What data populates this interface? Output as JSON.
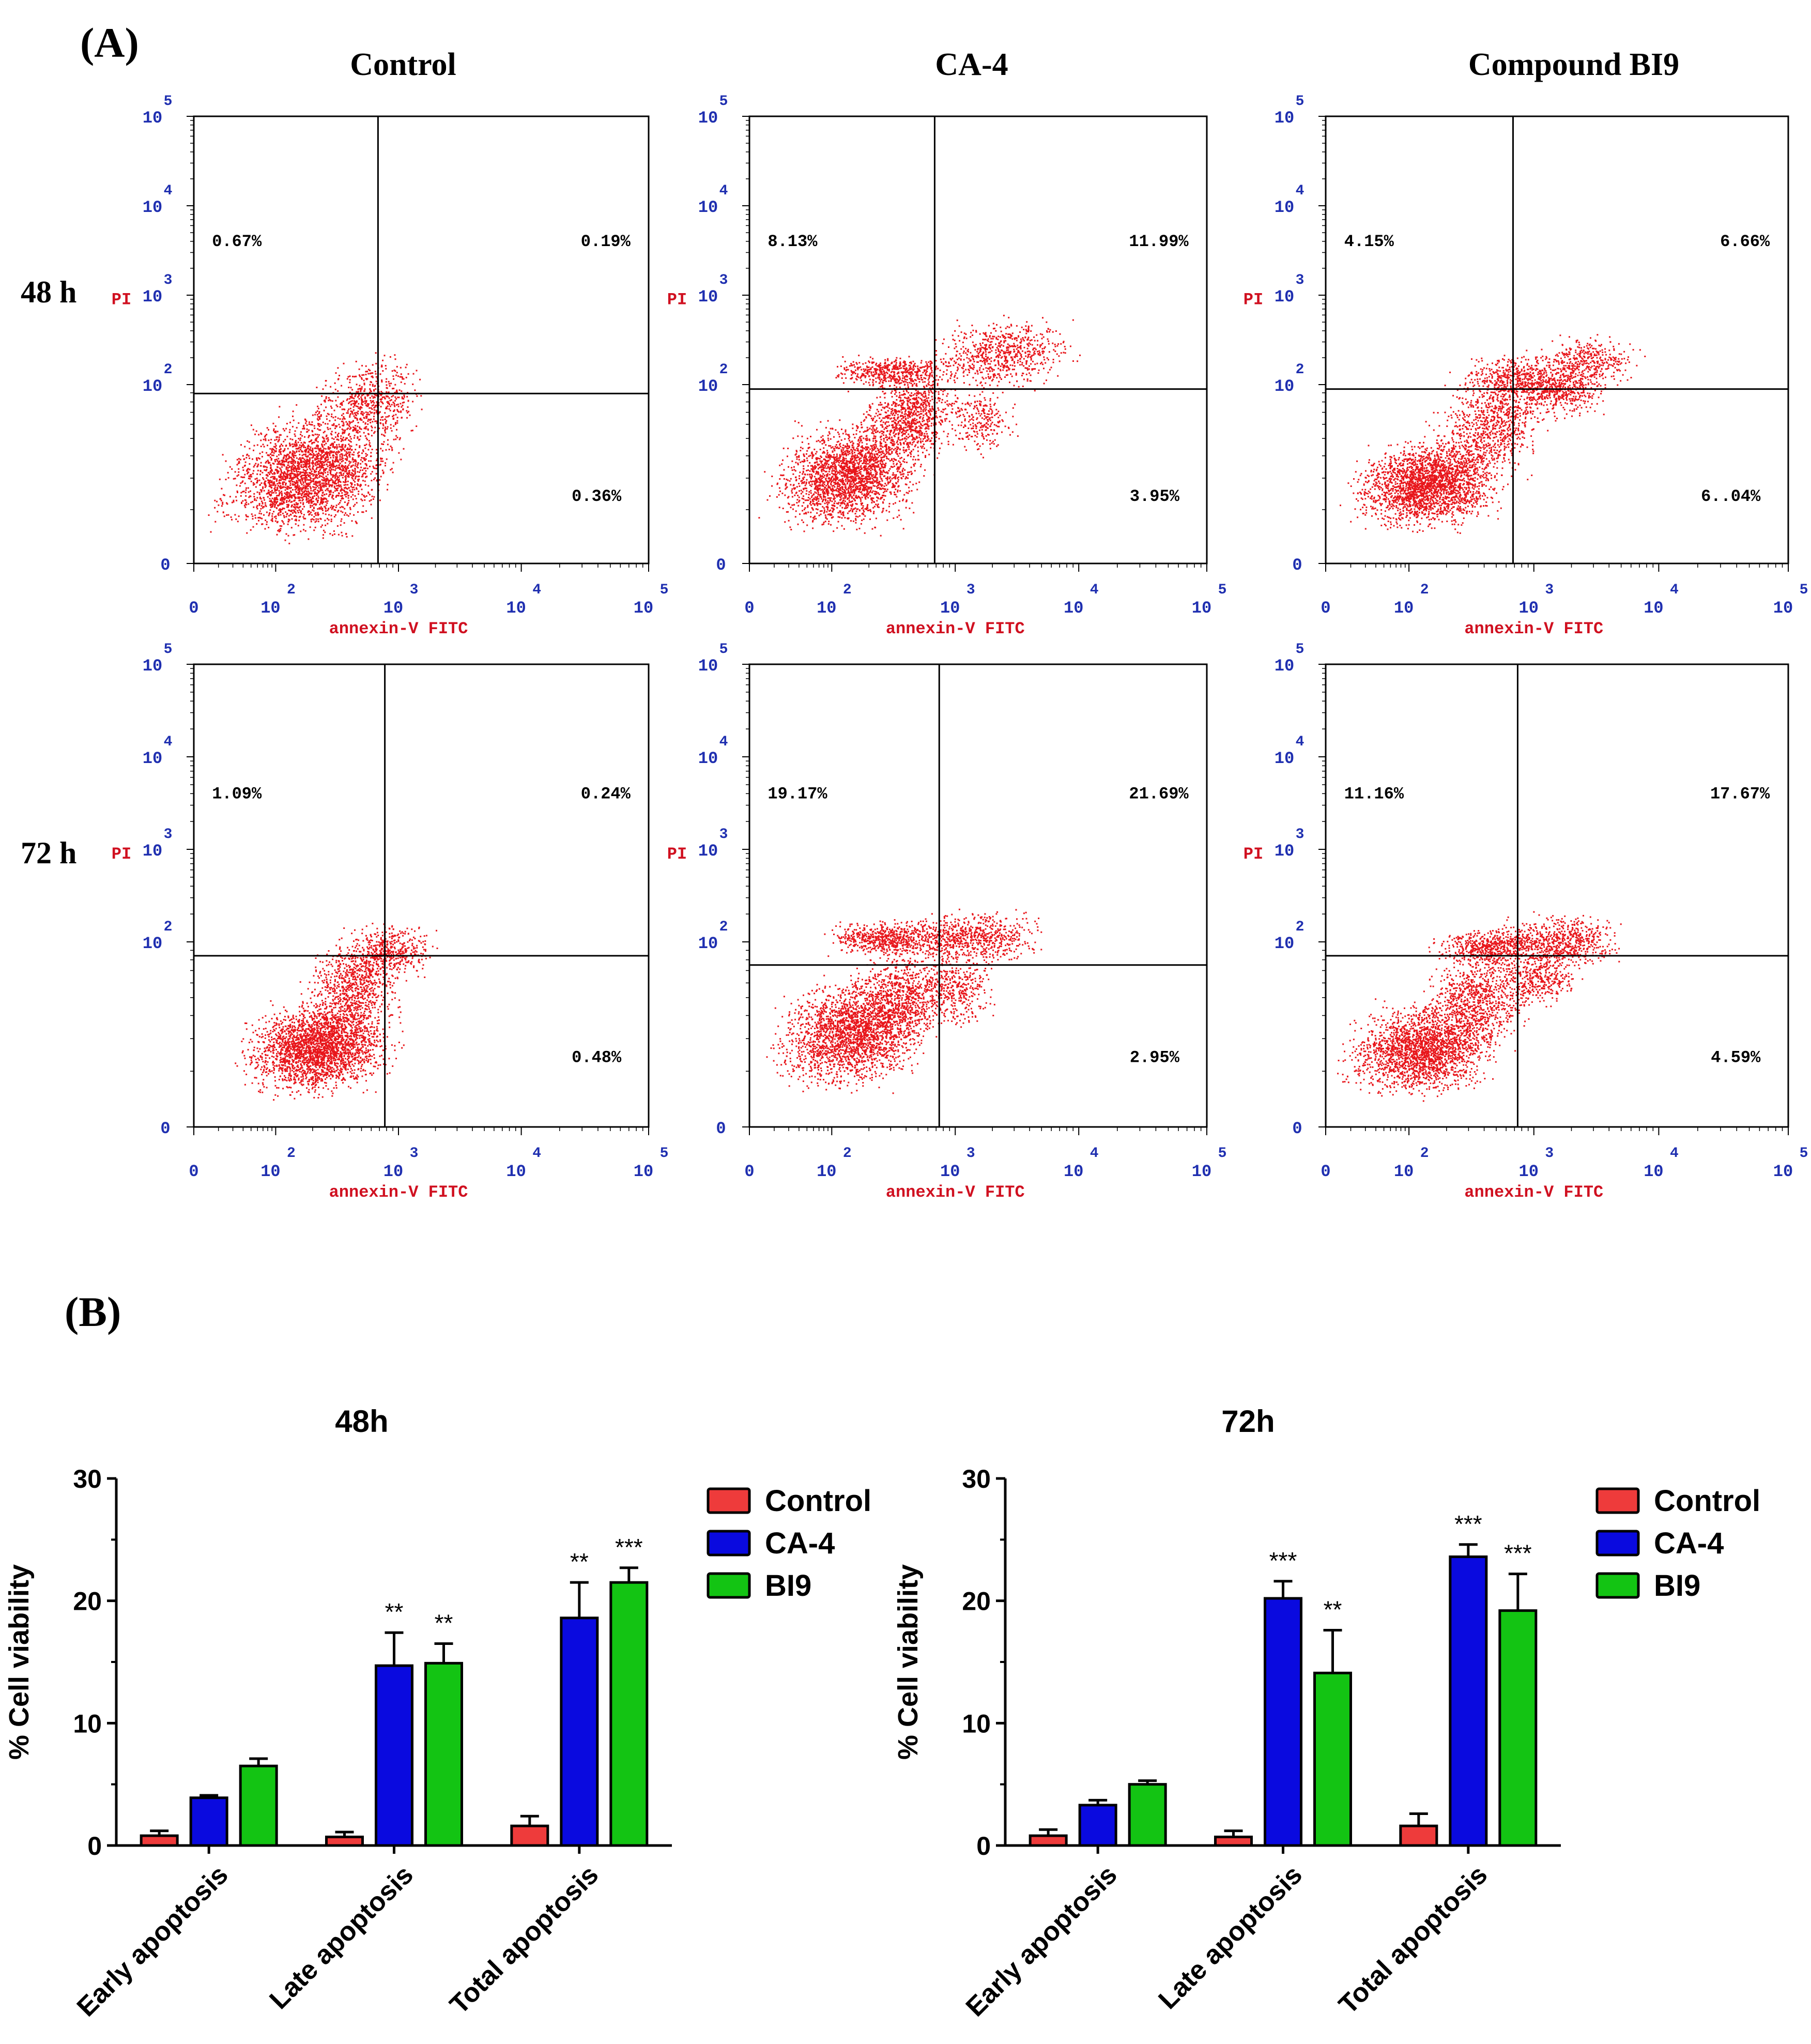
{
  "panel_labels": {
    "a": "(A)",
    "b": "(B)"
  },
  "colors": {
    "dot": "#e8161b",
    "tick_label": "#1f2fb0",
    "axis_title": "#d01020",
    "control": "#ee3b3b",
    "ca4": "#0a0adf",
    "bi9": "#13c413",
    "frame": "#000000"
  },
  "chart_data": [
    {
      "type": "scatter",
      "subtype": "flow-cytometry-quadrant-grid",
      "columns": [
        "Control",
        "CA-4",
        "Compound BI9"
      ],
      "rows": [
        "48 h",
        "72 h"
      ],
      "xlabel": "annexin-V FITC",
      "ylabel": "PI",
      "axis_base": "10",
      "axis_exponents": [
        "0",
        "2",
        "3",
        "4",
        "5"
      ],
      "axis_zero": "0",
      "x_range_log10": [
        0,
        5
      ],
      "y_range_log10": [
        0,
        5
      ],
      "panels": [
        {
          "row": "48 h",
          "column": "Control",
          "quadrants": {
            "ul": "0.67%",
            "ur": "0.19%",
            "lr": "0.36%"
          }
        },
        {
          "row": "48 h",
          "column": "CA-4",
          "quadrants": {
            "ul": "8.13%",
            "ur": "11.99%",
            "lr": "3.95%"
          }
        },
        {
          "row": "48 h",
          "column": "Compound BI9",
          "quadrants": {
            "ul": "4.15%",
            "ur": "6.66%",
            "lr": "6..04%"
          }
        },
        {
          "row": "72 h",
          "column": "Control",
          "quadrants": {
            "ul": "1.09%",
            "ur": "0.24%",
            "lr": "0.48%"
          }
        },
        {
          "row": "72 h",
          "column": "CA-4",
          "quadrants": {
            "ul": "19.17%",
            "ur": "21.69%",
            "lr": "2.95%"
          }
        },
        {
          "row": "72 h",
          "column": "Compound BI9",
          "quadrants": {
            "ul": "11.16%",
            "ur": "17.67%",
            "lr": "4.59%"
          }
        }
      ]
    },
    {
      "type": "bar",
      "title": "48h",
      "ylabel": "% Cell viability",
      "ylim": [
        0,
        30
      ],
      "yticks": [
        0,
        10,
        20,
        30
      ],
      "categories": [
        "Early apoptosis",
        "Late apoptosis",
        "Total apoptosis"
      ],
      "series": [
        {
          "name": "Control",
          "values": [
            0.8,
            0.7,
            1.6
          ],
          "errors": [
            0.4,
            0.4,
            0.8
          ],
          "sig": [
            "",
            "",
            ""
          ]
        },
        {
          "name": "CA-4",
          "values": [
            3.9,
            14.7,
            18.6
          ],
          "errors": [
            0.2,
            2.7,
            2.9
          ],
          "sig": [
            "",
            "**",
            "**"
          ]
        },
        {
          "name": "BI9",
          "values": [
            6.5,
            14.9,
            21.5
          ],
          "errors": [
            0.6,
            1.6,
            1.2
          ],
          "sig": [
            "",
            "**",
            "***"
          ]
        }
      ]
    },
    {
      "type": "bar",
      "title": "72h",
      "ylabel": "% Cell viability",
      "ylim": [
        0,
        30
      ],
      "yticks": [
        0,
        10,
        20,
        30
      ],
      "categories": [
        "Early apoptosis",
        "Late apoptosis",
        "Total apoptosis"
      ],
      "series": [
        {
          "name": "Control",
          "values": [
            0.8,
            0.7,
            1.6
          ],
          "errors": [
            0.5,
            0.5,
            1.0
          ],
          "sig": [
            "",
            "",
            ""
          ]
        },
        {
          "name": "CA-4",
          "values": [
            3.3,
            20.2,
            23.6
          ],
          "errors": [
            0.4,
            1.4,
            1.0
          ],
          "sig": [
            "",
            "***",
            "***"
          ]
        },
        {
          "name": "BI9",
          "values": [
            5.0,
            14.1,
            19.2
          ],
          "errors": [
            0.3,
            3.5,
            3.0
          ],
          "sig": [
            "",
            "**",
            "***"
          ]
        }
      ]
    }
  ]
}
